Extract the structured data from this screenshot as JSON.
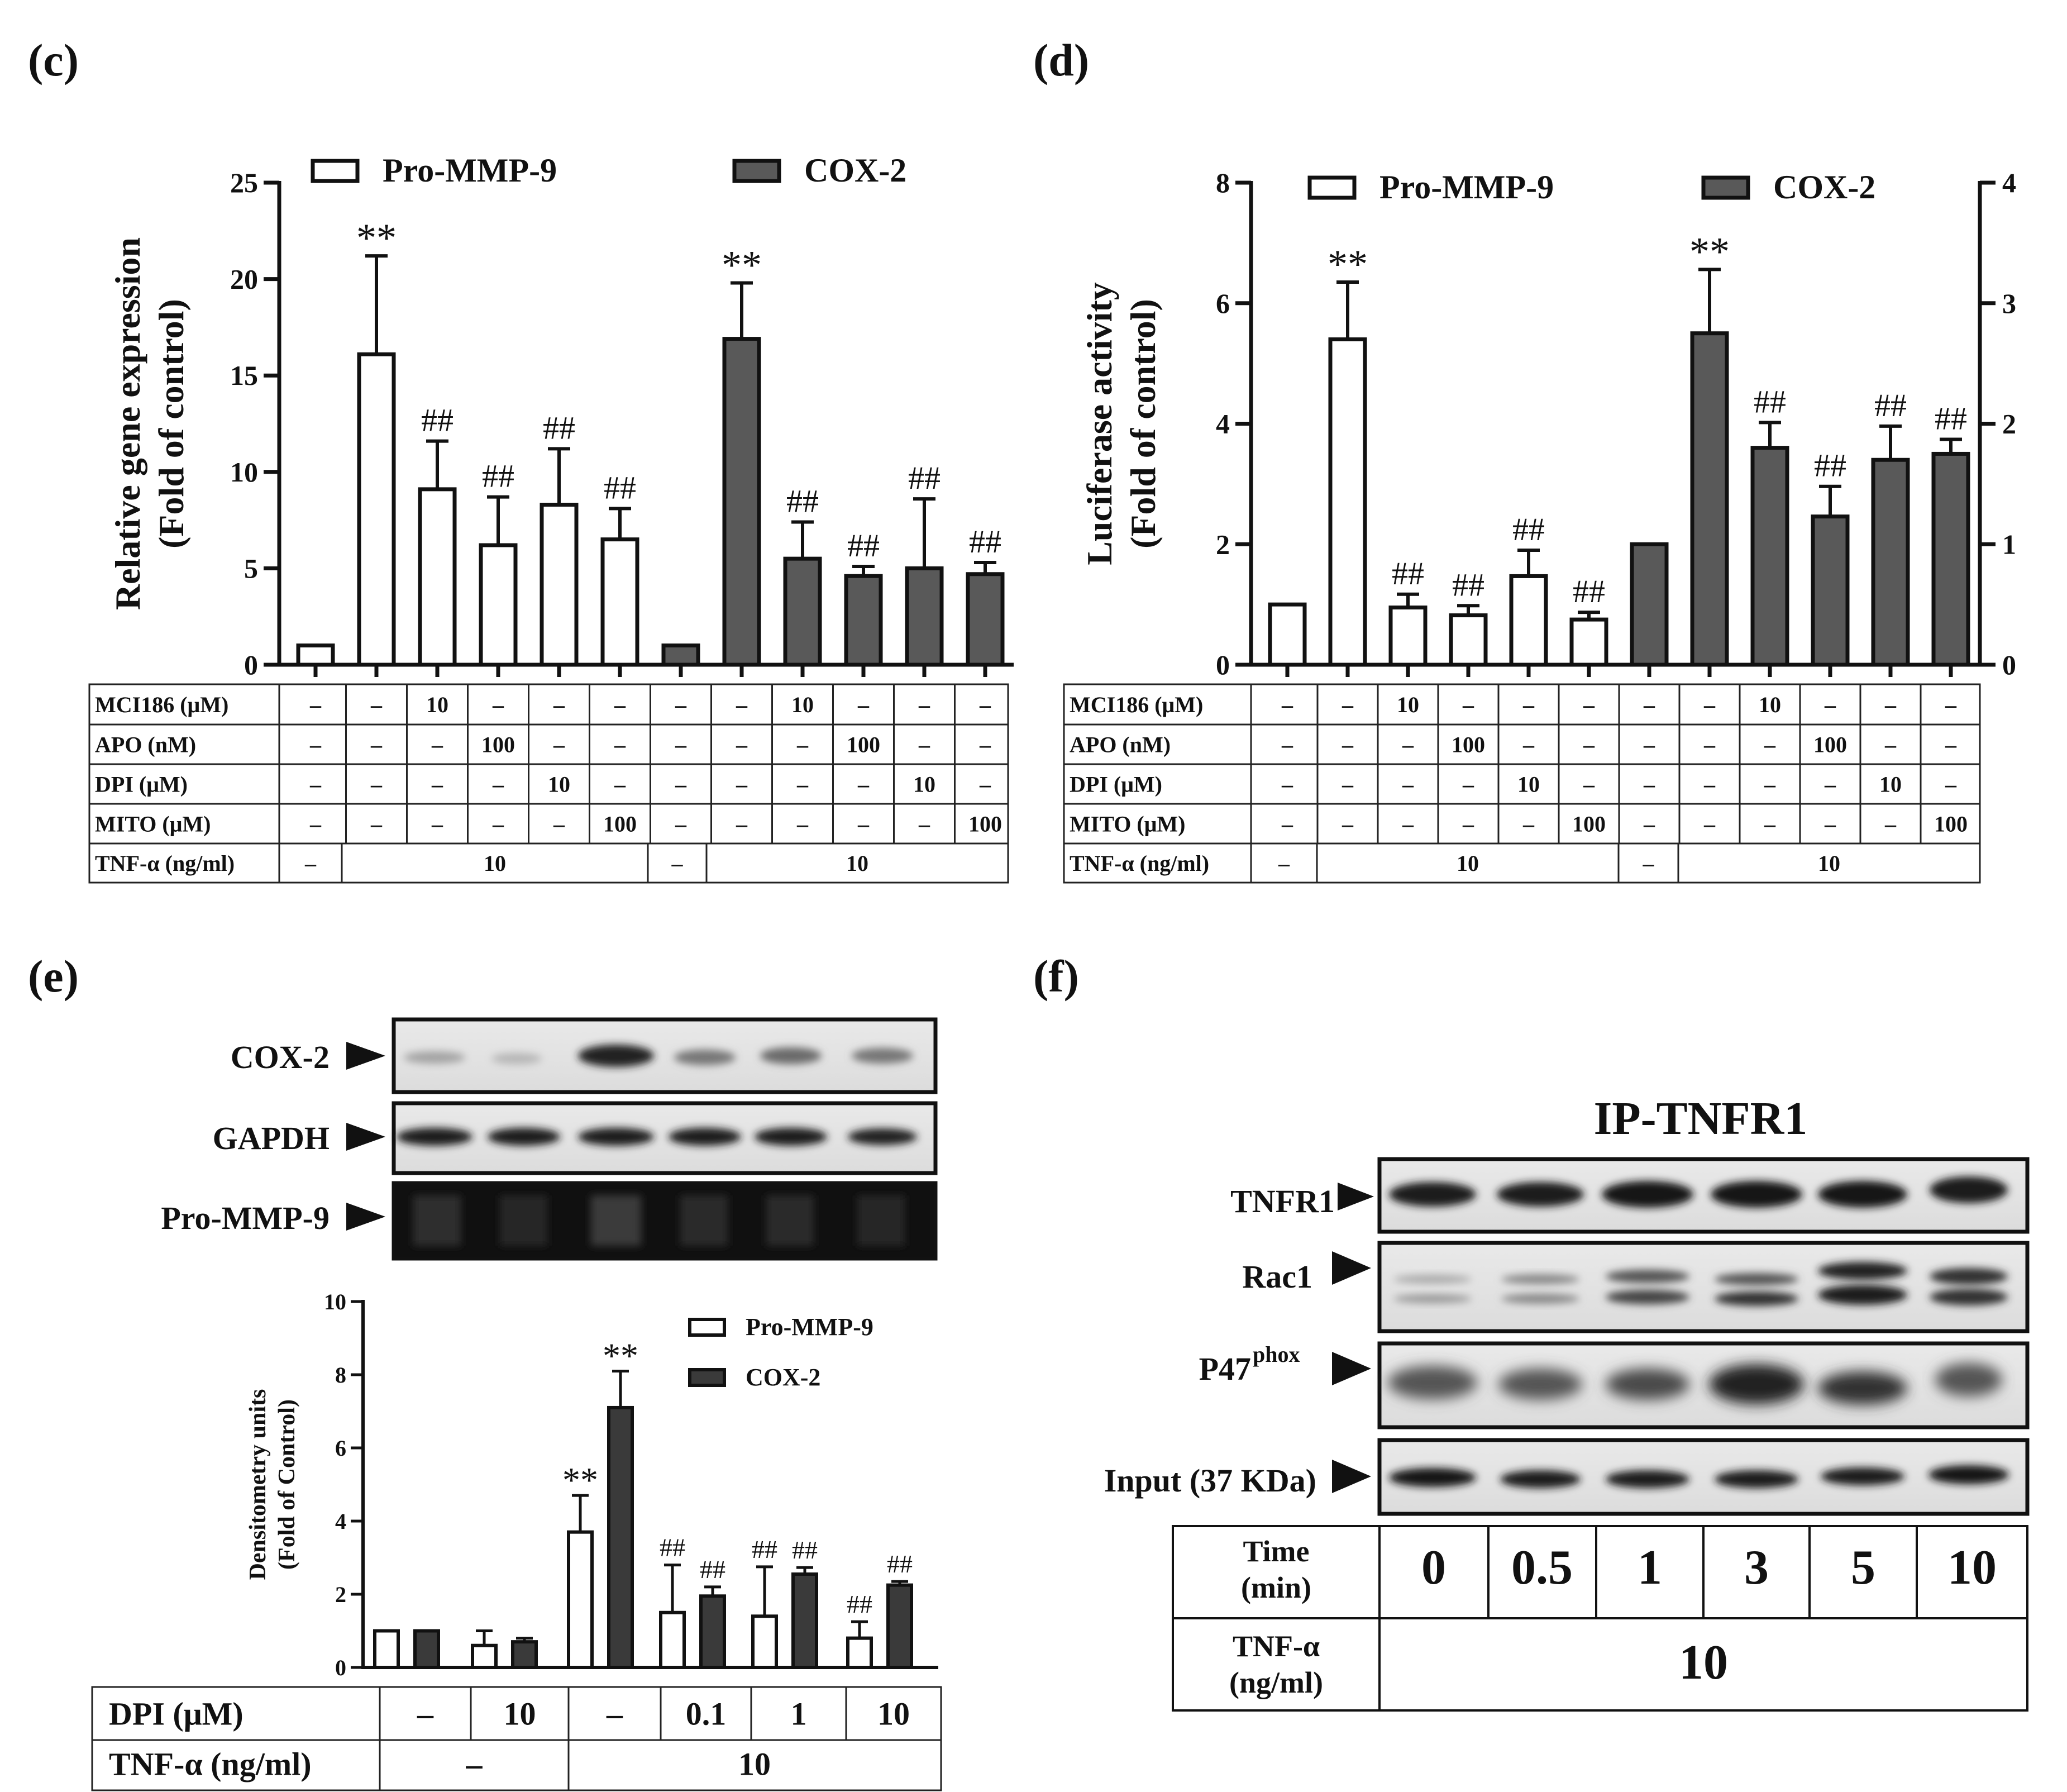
{
  "panels": {
    "c": {
      "label": "(c)"
    },
    "d": {
      "label": "(d)"
    },
    "e": {
      "label": "(e)"
    },
    "f": {
      "label": "(f)"
    }
  },
  "colors": {
    "open_bar": "#ffffff",
    "dark_bar": "#595959",
    "dark_bar_e": "#3a3a3a",
    "stroke": "#111111"
  },
  "chart_data": [
    {
      "id": "c",
      "type": "bar",
      "ylabel": [
        "Relative gene expression",
        "(Fold of control)"
      ],
      "ylim": [
        0,
        25
      ],
      "yticks": [
        0,
        5,
        10,
        15,
        20,
        25
      ],
      "legend": [
        "Pro-MMP-9",
        "COX-2"
      ],
      "series": [
        {
          "name": "Pro-MMP-9",
          "values": [
            1.0,
            16.1,
            9.1,
            6.2,
            8.3,
            6.5
          ],
          "errors": [
            0,
            5.1,
            2.5,
            2.5,
            2.9,
            1.6
          ],
          "annotations": [
            "",
            "**",
            "##",
            "##",
            "##",
            "##"
          ]
        },
        {
          "name": "COX-2",
          "values": [
            1.0,
            16.9,
            5.5,
            4.6,
            5.0,
            4.7
          ],
          "errors": [
            0,
            2.9,
            1.9,
            0.5,
            3.6,
            0.6
          ],
          "annotations": [
            "",
            "**",
            "##",
            "##",
            "##",
            "##"
          ]
        }
      ],
      "table": {
        "rows": [
          {
            "label": "MCI186 (μM)",
            "values": [
              "–",
              "–",
              "10",
              "–",
              "–",
              "–",
              "–",
              "–",
              "10",
              "–",
              "–",
              "–"
            ]
          },
          {
            "label": "APO (nM)",
            "values": [
              "–",
              "–",
              "–",
              "100",
              "–",
              "–",
              "–",
              "–",
              "–",
              "100",
              "–",
              "–"
            ]
          },
          {
            "label": "DPI (μM)",
            "values": [
              "–",
              "–",
              "–",
              "–",
              "10",
              "–",
              "–",
              "–",
              "–",
              "–",
              "10",
              "–"
            ]
          },
          {
            "label": "MITO (μM)",
            "values": [
              "–",
              "–",
              "–",
              "–",
              "–",
              "100",
              "–",
              "–",
              "–",
              "–",
              "–",
              "100"
            ]
          }
        ],
        "tnf_label": "TNF-α (ng/ml)",
        "tnf_values": [
          "–",
          "10",
          "–",
          "10"
        ]
      }
    },
    {
      "id": "d",
      "type": "bar",
      "ylabel": [
        "Luciferase activity",
        "(Fold of control)"
      ],
      "ylim": [
        0,
        8
      ],
      "yticks": [
        0,
        2,
        4,
        6,
        8
      ],
      "y2lim": [
        0,
        4
      ],
      "y2ticks": [
        0,
        1,
        2,
        3,
        4
      ],
      "legend": [
        "Pro-MMP-9",
        "COX-2"
      ],
      "series": [
        {
          "name": "Pro-MMP-9",
          "axis": "left",
          "values": [
            1.0,
            5.4,
            0.95,
            0.82,
            1.47,
            0.75
          ],
          "errors": [
            0,
            0.95,
            0.22,
            0.16,
            0.43,
            0.12
          ],
          "annotations": [
            "",
            "**",
            "##",
            "##",
            "##",
            "##"
          ]
        },
        {
          "name": "COX-2",
          "axis": "right",
          "values": [
            1.0,
            2.75,
            1.8,
            1.23,
            1.7,
            1.75
          ],
          "errors": [
            0,
            0.53,
            0.21,
            0.25,
            0.28,
            0.12
          ],
          "annotations": [
            "",
            "**",
            "##",
            "##",
            "##",
            "##"
          ]
        }
      ],
      "table": {
        "rows": [
          {
            "label": "MCI186 (μM)",
            "values": [
              "–",
              "–",
              "10",
              "–",
              "–",
              "–",
              "–",
              "–",
              "10",
              "–",
              "–",
              "–"
            ]
          },
          {
            "label": "APO (nM)",
            "values": [
              "–",
              "–",
              "–",
              "100",
              "–",
              "–",
              "–",
              "–",
              "–",
              "100",
              "–",
              "–"
            ]
          },
          {
            "label": "DPI (μM)",
            "values": [
              "–",
              "–",
              "–",
              "–",
              "10",
              "–",
              "–",
              "–",
              "–",
              "–",
              "10",
              "–"
            ]
          },
          {
            "label": "MITO (μM)",
            "values": [
              "–",
              "–",
              "–",
              "–",
              "–",
              "100",
              "–",
              "–",
              "–",
              "–",
              "–",
              "100"
            ]
          }
        ],
        "tnf_label": "TNF-α (ng/ml)",
        "tnf_values": [
          "–",
          "10",
          "–",
          "10"
        ]
      }
    },
    {
      "id": "e",
      "type": "bar",
      "ylabel": [
        "Densitometry units",
        "(Fold of Control)"
      ],
      "ylim": [
        0,
        10
      ],
      "yticks": [
        0,
        2,
        4,
        6,
        8,
        10
      ],
      "legend": [
        "Pro-MMP-9",
        "COX-2"
      ],
      "series": [
        {
          "name": "Pro-MMP-9",
          "values": [
            1.0,
            0.6,
            3.7,
            1.5,
            1.4,
            0.8
          ],
          "errors": [
            0,
            0.4,
            1.0,
            1.3,
            1.35,
            0.45
          ],
          "annotations": [
            "",
            "",
            "**",
            "##",
            "##",
            "##"
          ]
        },
        {
          "name": "COX-2",
          "values": [
            1.0,
            0.7,
            7.1,
            1.95,
            2.55,
            2.25
          ],
          "errors": [
            0,
            0.1,
            1.0,
            0.25,
            0.18,
            0.1
          ],
          "annotations": [
            "",
            "",
            "**",
            "##",
            "##",
            "##"
          ]
        }
      ],
      "blot_labels": [
        "COX-2",
        "GAPDH",
        "Pro-MMP-9"
      ],
      "table": {
        "dpi_label": "DPI (μM)",
        "dpi_values": [
          "–",
          "10",
          "–",
          "0.1",
          "1",
          "10"
        ],
        "tnf_label": "TNF-α (ng/ml)",
        "tnf_values": [
          "–",
          "10"
        ]
      }
    }
  ],
  "panel_f": {
    "title": "IP-TNFR1",
    "blot_labels": [
      "TNFR1",
      "Rac1",
      "P47",
      "Input (37 KDa)"
    ],
    "p47_superscript": "phox",
    "time_label": [
      "Time",
      "(min)"
    ],
    "time_values": [
      "0",
      "0.5",
      "1",
      "3",
      "5",
      "10"
    ],
    "tnf_label": [
      "TNF-α",
      "(ng/ml)"
    ],
    "tnf_value": "10"
  }
}
